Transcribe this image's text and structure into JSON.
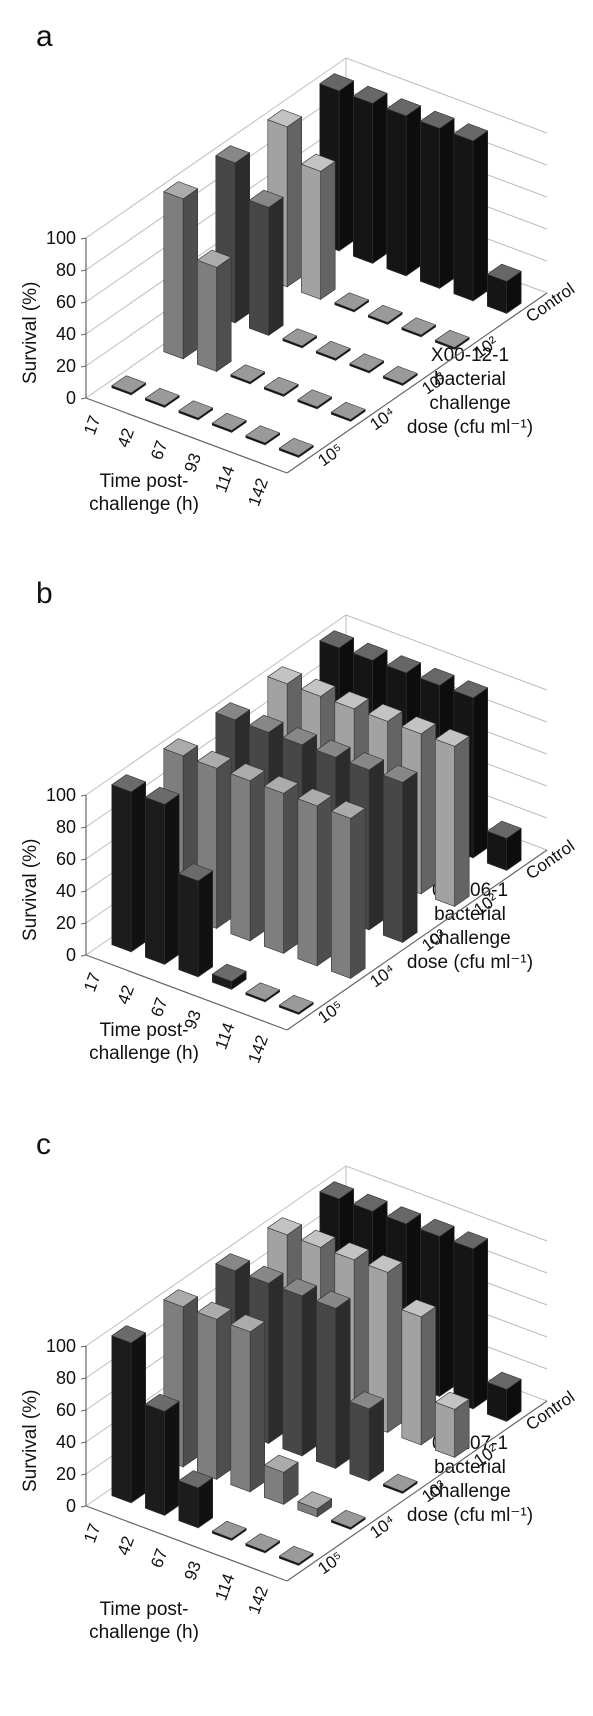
{
  "chart_data": [
    {
      "type": "bar3d",
      "panel_label": "a",
      "strain": "X00-12-1",
      "y_axis_label": "Survival (%)",
      "x_axis_label_line1": "Time post-",
      "x_axis_label_line2": "challenge (h)",
      "dose_label_line1": "X00-12-1",
      "dose_label_line2": "bacterial",
      "dose_label_line3": "challenge",
      "dose_label_line4": "dose (cfu ml⁻¹)",
      "y_ticks": [
        "0",
        "20",
        "40",
        "60",
        "80",
        "100"
      ],
      "ylim": [
        0,
        100
      ],
      "times": [
        "17",
        "42",
        "67",
        "93",
        "114",
        "142"
      ],
      "doses": [
        "10⁵",
        "10⁴",
        "10³",
        "10²",
        "Control"
      ],
      "series": [
        {
          "name": "10⁵",
          "values": [
            0,
            0,
            0,
            0,
            0,
            0
          ]
        },
        {
          "name": "10⁴",
          "values": [
            100,
            65,
            0,
            0,
            0,
            0
          ]
        },
        {
          "name": "10³",
          "values": [
            100,
            80,
            0,
            0,
            0,
            0
          ]
        },
        {
          "name": "10²",
          "values": [
            100,
            80,
            0,
            0,
            0,
            0
          ]
        },
        {
          "name": "Control",
          "values": [
            100,
            100,
            100,
            100,
            100,
            20
          ]
        }
      ]
    },
    {
      "type": "bar3d",
      "panel_label": "b",
      "strain": "06-106-1",
      "y_axis_label": "Survival (%)",
      "x_axis_label_line1": "Time post-",
      "x_axis_label_line2": "challenge (h)",
      "dose_label_line1": "06-106-1",
      "dose_label_line2": "bacterial",
      "dose_label_line3": "challenge",
      "dose_label_line4": "dose (cfu ml⁻¹)",
      "y_ticks": [
        "0",
        "20",
        "40",
        "60",
        "80",
        "100"
      ],
      "ylim": [
        0,
        100
      ],
      "times": [
        "17",
        "42",
        "67",
        "93",
        "114",
        "142"
      ],
      "doses": [
        "10⁵",
        "10⁴",
        "10³",
        "10²",
        "Control"
      ],
      "series": [
        {
          "name": "10⁵",
          "values": [
            100,
            100,
            60,
            5,
            0,
            0
          ]
        },
        {
          "name": "10⁴",
          "values": [
            100,
            100,
            100,
            100,
            100,
            100
          ]
        },
        {
          "name": "10³",
          "values": [
            100,
            100,
            100,
            100,
            100,
            100
          ]
        },
        {
          "name": "10²",
          "values": [
            100,
            100,
            100,
            100,
            100,
            100
          ]
        },
        {
          "name": "Control",
          "values": [
            100,
            100,
            100,
            100,
            100,
            20
          ]
        }
      ]
    },
    {
      "type": "bar3d",
      "panel_label": "c",
      "strain": "06-107-1",
      "y_axis_label": "Survival (%)",
      "x_axis_label_line1": "Time post-",
      "x_axis_label_line2": "challenge (h)",
      "dose_label_line1": "06-107-1",
      "dose_label_line2": "bacterial",
      "dose_label_line3": "challenge",
      "dose_label_line4": "dose (cfu ml⁻¹)",
      "y_ticks": [
        "0",
        "20",
        "40",
        "60",
        "80",
        "100"
      ],
      "ylim": [
        0,
        100
      ],
      "times": [
        "17",
        "42",
        "67",
        "93",
        "114",
        "142"
      ],
      "doses": [
        "10⁵",
        "10⁴",
        "10³",
        "10²",
        "Control"
      ],
      "series": [
        {
          "name": "10⁵",
          "values": [
            100,
            65,
            25,
            0,
            0,
            0
          ]
        },
        {
          "name": "10⁴",
          "values": [
            100,
            100,
            100,
            20,
            5,
            0
          ]
        },
        {
          "name": "10³",
          "values": [
            100,
            100,
            100,
            100,
            45,
            0
          ]
        },
        {
          "name": "10²",
          "values": [
            100,
            100,
            100,
            100,
            80,
            30
          ]
        },
        {
          "name": "Control",
          "values": [
            100,
            100,
            100,
            100,
            100,
            20
          ]
        }
      ]
    }
  ],
  "colors": {
    "series_fill": [
      "#1c1c1c",
      "#7e7e7e",
      "#474747",
      "#a2a2a2",
      "#151515"
    ],
    "axis": "#666666",
    "grid": "#bdbdbd",
    "floor_zero_bar": "#0f0f0f"
  }
}
